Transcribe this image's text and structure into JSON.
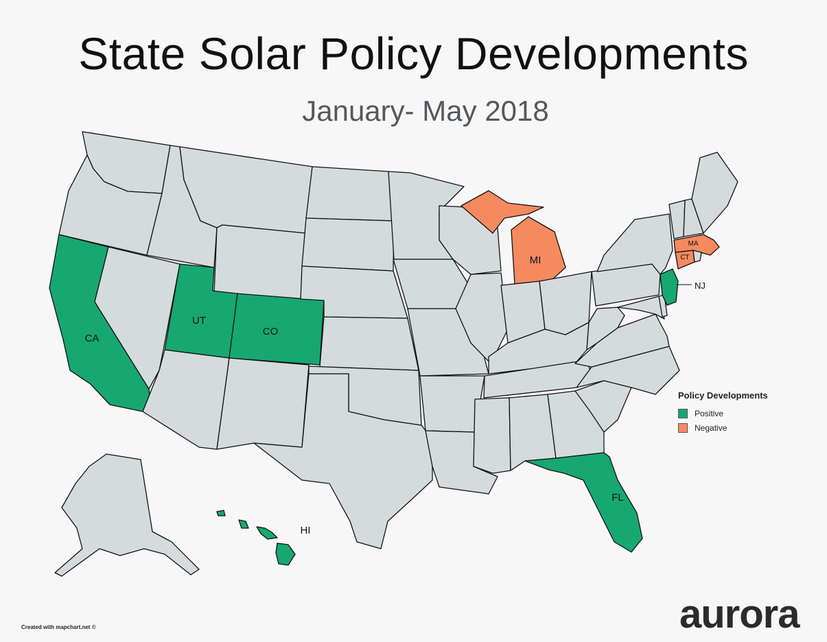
{
  "title": "State Solar Policy Developments",
  "subtitle": "January- May 2018",
  "colors": {
    "positive": "#16a870",
    "negative": "#f58a5f",
    "neutral": "#d4dbdd",
    "border": "#111111",
    "background": "#f7f7f7"
  },
  "legend": {
    "title": "Policy Developments",
    "items": [
      {
        "label": "Positive",
        "category": "positive"
      },
      {
        "label": "Negative",
        "category": "negative"
      }
    ]
  },
  "states": {
    "positive": [
      "CA",
      "UT",
      "CO",
      "FL",
      "NJ",
      "HI"
    ],
    "negative": [
      "MI",
      "MA",
      "CT"
    ]
  },
  "labels": {
    "CA": "CA",
    "UT": "UT",
    "CO": "CO",
    "FL": "FL",
    "NJ": "NJ",
    "HI": "HI",
    "MI": "MI",
    "MA": "MA",
    "CT": "CT"
  },
  "credit": "Created with mapchart.net ©",
  "logo": "aurora"
}
